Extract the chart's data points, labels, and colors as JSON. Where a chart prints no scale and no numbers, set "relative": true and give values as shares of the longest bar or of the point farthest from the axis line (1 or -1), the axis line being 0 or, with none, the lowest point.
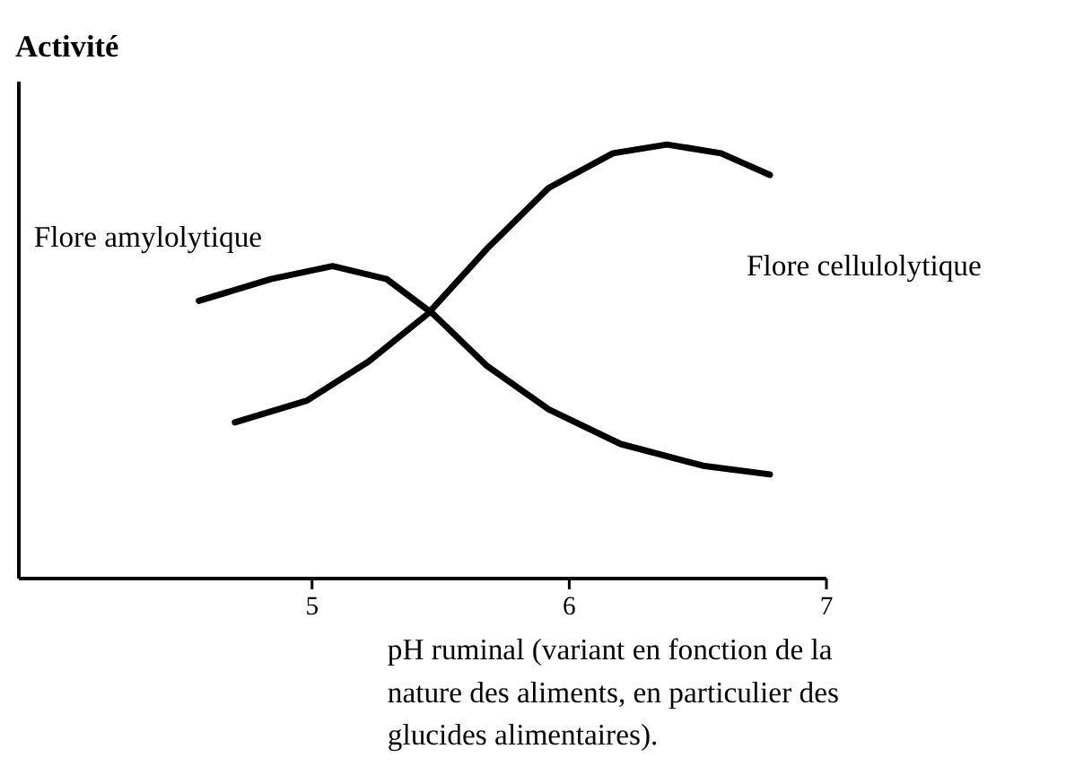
{
  "chart_data": {
    "type": "line",
    "ylabel": "Activité",
    "xlabel": "pH ruminal (variant en fonction de la\nnature des aliments, en particulier des\nglucides alimentaires).",
    "relative": true,
    "xlim": [
      3.86,
      7.0
    ],
    "xticks": [
      5,
      6,
      7
    ],
    "grid": false,
    "marker": "none",
    "line_style": "solid",
    "series": [
      {
        "name": "Flore amylolytique",
        "color": "#000000",
        "x": [
          4.56,
          4.84,
          5.08,
          5.29,
          5.47,
          5.68,
          5.92,
          6.2,
          6.52,
          6.78
        ],
        "values": [
          0.64,
          0.69,
          0.72,
          0.69,
          0.61,
          0.49,
          0.39,
          0.31,
          0.26,
          0.24
        ]
      },
      {
        "name": "Flore cellulolytique",
        "color": "#000000",
        "x": [
          4.7,
          4.98,
          5.22,
          5.45,
          5.68,
          5.92,
          6.17,
          6.38,
          6.59,
          6.78
        ],
        "values": [
          0.36,
          0.41,
          0.5,
          0.61,
          0.76,
          0.9,
          0.98,
          1.0,
          0.98,
          0.93
        ]
      }
    ]
  }
}
